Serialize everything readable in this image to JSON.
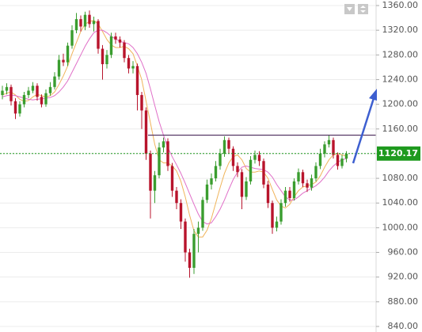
{
  "chart_data": {
    "type": "candlestick",
    "open": [
      1215,
      1222,
      1228,
      1205,
      1185,
      1200,
      1215,
      1222,
      1230,
      1212,
      1200,
      1218,
      1228,
      1245,
      1272,
      1268,
      1295,
      1320,
      1338,
      1326,
      1345,
      1330,
      1335,
      1290,
      1265,
      1280,
      1310,
      1305,
      1300,
      1275,
      1258,
      1262,
      1215,
      1190,
      1120,
      1060,
      1085,
      1130,
      1140,
      1100,
      1060,
      1040,
      1010,
      960,
      935,
      990,
      1000,
      1045,
      1070,
      1080,
      1100,
      1120,
      1142,
      1128,
      1100,
      1090,
      1050,
      1075,
      1110,
      1118,
      1108,
      1070,
      1040,
      1000,
      1010,
      1040,
      1060,
      1048,
      1075,
      1090,
      1072,
      1065,
      1080,
      1100,
      1120,
      1135,
      1142,
      1118,
      1100,
      1112
    ],
    "high": [
      1230,
      1234,
      1232,
      1210,
      1205,
      1220,
      1228,
      1236,
      1234,
      1216,
      1224,
      1236,
      1252,
      1280,
      1282,
      1300,
      1328,
      1348,
      1344,
      1350,
      1352,
      1342,
      1338,
      1296,
      1288,
      1316,
      1316,
      1310,
      1304,
      1280,
      1270,
      1266,
      1220,
      1195,
      1125,
      1092,
      1138,
      1146,
      1145,
      1105,
      1066,
      1046,
      1015,
      966,
      998,
      1010,
      1050,
      1078,
      1088,
      1108,
      1128,
      1148,
      1146,
      1132,
      1106,
      1095,
      1082,
      1116,
      1125,
      1124,
      1112,
      1076,
      1044,
      1018,
      1046,
      1066,
      1066,
      1080,
      1096,
      1094,
      1078,
      1086,
      1106,
      1128,
      1140,
      1150,
      1146,
      1122,
      1118,
      1124
    ],
    "low": [
      1208,
      1216,
      1198,
      1176,
      1180,
      1195,
      1210,
      1218,
      1206,
      1195,
      1196,
      1214,
      1224,
      1240,
      1262,
      1262,
      1290,
      1315,
      1318,
      1320,
      1324,
      1318,
      1282,
      1240,
      1258,
      1275,
      1298,
      1292,
      1268,
      1250,
      1250,
      1190,
      1160,
      1110,
      1015,
      1040,
      1080,
      1122,
      1092,
      1050,
      1030,
      998,
      945,
      919,
      925,
      960,
      995,
      1040,
      1062,
      1075,
      1094,
      1115,
      1120,
      1092,
      1082,
      1030,
      1045,
      1070,
      1104,
      1100,
      1064,
      1032,
      990,
      994,
      1005,
      1034,
      1042,
      1044,
      1070,
      1066,
      1058,
      1060,
      1075,
      1095,
      1114,
      1130,
      1112,
      1094,
      1096,
      1106
    ],
    "close": [
      1222,
      1228,
      1205,
      1185,
      1200,
      1215,
      1222,
      1230,
      1212,
      1200,
      1218,
      1228,
      1245,
      1272,
      1268,
      1295,
      1320,
      1338,
      1326,
      1345,
      1330,
      1335,
      1290,
      1265,
      1280,
      1310,
      1305,
      1300,
      1275,
      1258,
      1262,
      1215,
      1190,
      1120,
      1060,
      1085,
      1130,
      1140,
      1100,
      1060,
      1040,
      1010,
      960,
      935,
      990,
      1000,
      1045,
      1070,
      1080,
      1100,
      1120,
      1142,
      1128,
      1100,
      1090,
      1050,
      1075,
      1110,
      1118,
      1108,
      1070,
      1040,
      1000,
      1010,
      1040,
      1060,
      1048,
      1075,
      1090,
      1072,
      1065,
      1080,
      1100,
      1120,
      1135,
      1142,
      1118,
      1100,
      1112,
      1120
    ],
    "up_color": "#3a9d2f",
    "down_color": "#b8142c",
    "series": [
      {
        "color": "#f0b45a",
        "values": [
          1215,
          1218,
          1220,
          1215,
          1208,
          1205,
          1206,
          1212,
          1216,
          1214,
          1212,
          1214,
          1220,
          1232,
          1246,
          1262,
          1282,
          1300,
          1318,
          1330,
          1334,
          1336,
          1330,
          1318,
          1305,
          1296,
          1292,
          1292,
          1294,
          1290,
          1282,
          1262,
          1240,
          1205,
          1170,
          1135,
          1110,
          1105,
          1105,
          1100,
          1092,
          1075,
          1050,
          1020,
          995,
          985,
          985,
          996,
          1015,
          1040,
          1065,
          1088,
          1105,
          1115,
          1118,
          1110,
          1096,
          1090,
          1090,
          1092,
          1090,
          1080,
          1062,
          1045,
          1035,
          1032,
          1038,
          1050,
          1060,
          1066,
          1068,
          1070,
          1074,
          1084,
          1098,
          1110,
          1118,
          1120,
          1118,
          1116
        ]
      },
      {
        "color": "#e070c8",
        "values": [
          1212,
          1214,
          1215,
          1214,
          1212,
          1210,
          1208,
          1207,
          1208,
          1209,
          1210,
          1211,
          1214,
          1220,
          1228,
          1238,
          1252,
          1266,
          1280,
          1294,
          1306,
          1316,
          1320,
          1320,
          1316,
          1310,
          1306,
          1302,
          1300,
          1298,
          1292,
          1282,
          1268,
          1250,
          1225,
          1198,
          1172,
          1150,
          1130,
          1115,
          1102,
          1088,
          1072,
          1055,
          1038,
          1022,
          1010,
          1006,
          1008,
          1018,
          1030,
          1045,
          1062,
          1078,
          1090,
          1098,
          1100,
          1098,
          1096,
          1095,
          1094,
          1090,
          1082,
          1070,
          1060,
          1050,
          1045,
          1045,
          1050,
          1056,
          1060,
          1064,
          1068,
          1074,
          1082,
          1092,
          1100,
          1106,
          1110,
          1112
        ]
      }
    ],
    "resistance": 1150,
    "current_price": 1120.17,
    "current_color": "#1e9a1e",
    "ylim": [
      831,
      1369
    ],
    "yticks": [
      {
        "value": 840,
        "label": "840.00"
      },
      {
        "value": 880,
        "label": "880.00"
      },
      {
        "value": 920,
        "label": "920.00"
      },
      {
        "value": 960,
        "label": "960.00"
      },
      {
        "value": 1000,
        "label": "1000.00"
      },
      {
        "value": 1040,
        "label": "1040.00"
      },
      {
        "value": 1080,
        "label": "1080.00"
      },
      {
        "value": 1120,
        "label": "1120.00"
      },
      {
        "value": 1160,
        "label": "1160.00"
      },
      {
        "value": 1200,
        "label": "1200.00"
      },
      {
        "value": 1240,
        "label": "1240.00"
      },
      {
        "value": 1280,
        "label": "1280.00"
      },
      {
        "value": 1320,
        "label": "1320.00"
      },
      {
        "value": 1360,
        "label": "1360.00"
      }
    ],
    "grid": true
  }
}
